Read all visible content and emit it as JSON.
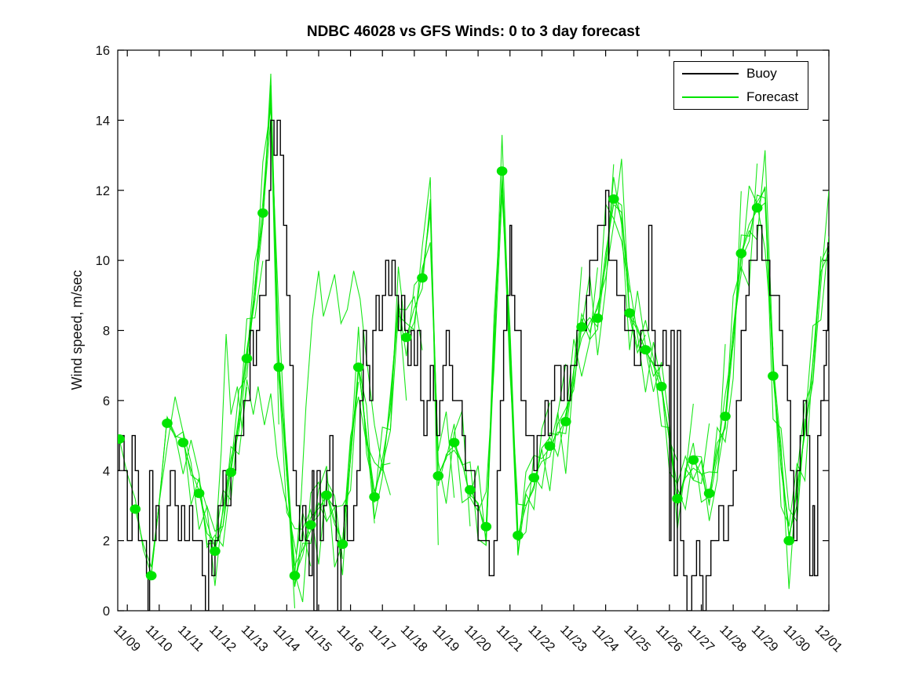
{
  "title": "NDBC 46028 vs GFS Winds: 0 to 3 day forecast",
  "y_axis": {
    "label": "Wind speed, m/sec",
    "ticks": [
      0,
      2,
      4,
      6,
      8,
      10,
      12,
      14,
      16
    ],
    "range": [
      0,
      16
    ]
  },
  "x_axis": {
    "tick_labels": [
      "11/09",
      "11/10",
      "11/11",
      "11/12",
      "11/13",
      "11/14",
      "11/15",
      "11/16",
      "11/17",
      "11/18",
      "11/19",
      "11/20",
      "11/21",
      "11/22",
      "11/23",
      "11/24",
      "11/25",
      "11/26",
      "11/27",
      "11/28",
      "11/29",
      "11/30",
      "12/01"
    ],
    "range_days": [
      -0.3,
      22.05
    ]
  },
  "legend": {
    "items": [
      {
        "label": "Buoy",
        "color": "#000000"
      },
      {
        "label": "Forecast",
        "color": "#00e400"
      }
    ]
  },
  "colors": {
    "background": "#ffffff",
    "axis": "#000000",
    "buoy": "#000000",
    "forecast": "#00e400"
  },
  "chart_data": {
    "type": "line",
    "title": "NDBC 46028 vs GFS Winds: 0 to 3 day forecast",
    "ylabel": "Wind speed, m/sec",
    "ylim": [
      0,
      16
    ],
    "x_unit": "days after 11/09 tick",
    "grid": false,
    "legend_position": "upper right",
    "forecast_run_length_days": 3,
    "forecast_spread": 1.3,
    "buoy_steps": [
      [
        -0.3,
        4
      ],
      [
        -0.25,
        5
      ],
      [
        -0.1,
        4
      ],
      [
        0.0,
        2
      ],
      [
        0.1,
        2
      ],
      [
        0.15,
        5
      ],
      [
        0.25,
        4
      ],
      [
        0.35,
        2
      ],
      [
        0.5,
        2
      ],
      [
        0.6,
        1
      ],
      [
        0.65,
        0
      ],
      [
        0.7,
        4
      ],
      [
        0.8,
        2
      ],
      [
        0.9,
        3
      ],
      [
        1.0,
        2
      ],
      [
        1.15,
        2
      ],
      [
        1.25,
        3
      ],
      [
        1.35,
        4
      ],
      [
        1.5,
        3
      ],
      [
        1.6,
        2
      ],
      [
        1.7,
        3
      ],
      [
        1.8,
        2
      ],
      [
        1.95,
        3
      ],
      [
        2.05,
        2
      ],
      [
        2.2,
        2
      ],
      [
        2.35,
        1
      ],
      [
        2.45,
        0
      ],
      [
        2.55,
        2
      ],
      [
        2.65,
        1
      ],
      [
        2.75,
        2
      ],
      [
        2.85,
        3
      ],
      [
        3.0,
        4
      ],
      [
        3.1,
        3
      ],
      [
        3.25,
        4
      ],
      [
        3.4,
        5
      ],
      [
        3.55,
        5
      ],
      [
        3.65,
        6
      ],
      [
        3.75,
        6
      ],
      [
        3.85,
        8
      ],
      [
        3.95,
        7
      ],
      [
        4.05,
        8
      ],
      [
        4.15,
        9
      ],
      [
        4.25,
        9
      ],
      [
        4.35,
        10
      ],
      [
        4.45,
        12
      ],
      [
        4.5,
        14
      ],
      [
        4.6,
        13
      ],
      [
        4.7,
        14
      ],
      [
        4.8,
        13
      ],
      [
        4.9,
        11
      ],
      [
        5.0,
        9
      ],
      [
        5.1,
        7
      ],
      [
        5.2,
        4
      ],
      [
        5.3,
        3
      ],
      [
        5.4,
        2
      ],
      [
        5.5,
        3
      ],
      [
        5.6,
        2
      ],
      [
        5.7,
        1
      ],
      [
        5.8,
        4
      ],
      [
        5.85,
        0
      ],
      [
        5.95,
        4
      ],
      [
        6.05,
        2
      ],
      [
        6.15,
        3
      ],
      [
        6.25,
        4
      ],
      [
        6.35,
        5
      ],
      [
        6.45,
        3
      ],
      [
        6.55,
        2
      ],
      [
        6.6,
        0
      ],
      [
        6.7,
        2
      ],
      [
        6.8,
        3
      ],
      [
        6.9,
        2
      ],
      [
        7.0,
        2
      ],
      [
        7.1,
        3
      ],
      [
        7.2,
        4
      ],
      [
        7.3,
        6
      ],
      [
        7.4,
        8
      ],
      [
        7.5,
        7
      ],
      [
        7.6,
        6
      ],
      [
        7.7,
        8
      ],
      [
        7.8,
        9
      ],
      [
        7.9,
        8
      ],
      [
        8.0,
        9
      ],
      [
        8.1,
        10
      ],
      [
        8.2,
        9
      ],
      [
        8.3,
        10
      ],
      [
        8.4,
        9
      ],
      [
        8.5,
        8
      ],
      [
        8.6,
        9
      ],
      [
        8.7,
        8
      ],
      [
        8.8,
        7
      ],
      [
        8.9,
        8
      ],
      [
        9.0,
        7
      ],
      [
        9.1,
        8
      ],
      [
        9.2,
        6
      ],
      [
        9.3,
        5
      ],
      [
        9.4,
        6
      ],
      [
        9.5,
        7
      ],
      [
        9.6,
        6
      ],
      [
        9.7,
        5
      ],
      [
        9.8,
        6
      ],
      [
        9.9,
        7
      ],
      [
        10.0,
        8
      ],
      [
        10.1,
        7
      ],
      [
        10.2,
        6
      ],
      [
        10.35,
        6
      ],
      [
        10.5,
        5
      ],
      [
        10.6,
        4
      ],
      [
        10.75,
        4
      ],
      [
        10.9,
        3
      ],
      [
        11.0,
        2
      ],
      [
        11.2,
        2
      ],
      [
        11.35,
        1
      ],
      [
        11.5,
        2
      ],
      [
        11.6,
        4
      ],
      [
        11.7,
        6
      ],
      [
        11.8,
        8
      ],
      [
        11.9,
        9
      ],
      [
        12.0,
        11
      ],
      [
        12.05,
        9
      ],
      [
        12.15,
        8
      ],
      [
        12.25,
        8
      ],
      [
        12.35,
        6
      ],
      [
        12.5,
        5
      ],
      [
        12.65,
        5
      ],
      [
        12.75,
        4
      ],
      [
        12.85,
        5
      ],
      [
        13.0,
        5
      ],
      [
        13.1,
        6
      ],
      [
        13.2,
        5
      ],
      [
        13.3,
        6
      ],
      [
        13.4,
        7
      ],
      [
        13.5,
        7
      ],
      [
        13.6,
        6
      ],
      [
        13.7,
        7
      ],
      [
        13.8,
        6
      ],
      [
        13.9,
        7
      ],
      [
        14.0,
        7
      ],
      [
        14.1,
        8
      ],
      [
        14.25,
        8
      ],
      [
        14.4,
        9
      ],
      [
        14.5,
        10
      ],
      [
        14.65,
        10
      ],
      [
        14.75,
        11
      ],
      [
        14.9,
        11
      ],
      [
        15.0,
        12
      ],
      [
        15.1,
        10
      ],
      [
        15.2,
        10
      ],
      [
        15.35,
        9
      ],
      [
        15.5,
        9
      ],
      [
        15.6,
        8
      ],
      [
        15.75,
        8
      ],
      [
        15.9,
        7
      ],
      [
        16.0,
        7
      ],
      [
        16.1,
        8
      ],
      [
        16.25,
        8
      ],
      [
        16.35,
        11
      ],
      [
        16.45,
        8
      ],
      [
        16.55,
        7
      ],
      [
        16.65,
        7
      ],
      [
        16.8,
        8
      ],
      [
        16.9,
        7
      ],
      [
        17.0,
        2
      ],
      [
        17.05,
        8
      ],
      [
        17.15,
        1
      ],
      [
        17.25,
        8
      ],
      [
        17.35,
        2
      ],
      [
        17.45,
        1
      ],
      [
        17.55,
        0
      ],
      [
        17.7,
        1
      ],
      [
        17.85,
        2
      ],
      [
        17.95,
        1
      ],
      [
        18.05,
        0
      ],
      [
        18.15,
        1
      ],
      [
        18.3,
        2
      ],
      [
        18.45,
        2
      ],
      [
        18.55,
        3
      ],
      [
        18.7,
        2
      ],
      [
        18.85,
        3
      ],
      [
        19.0,
        4
      ],
      [
        19.1,
        6
      ],
      [
        19.25,
        8
      ],
      [
        19.4,
        9
      ],
      [
        19.5,
        10
      ],
      [
        19.65,
        10
      ],
      [
        19.75,
        11
      ],
      [
        19.9,
        10
      ],
      [
        20.05,
        10
      ],
      [
        20.15,
        9
      ],
      [
        20.3,
        9
      ],
      [
        20.45,
        8
      ],
      [
        20.55,
        7
      ],
      [
        20.7,
        6
      ],
      [
        20.8,
        4
      ],
      [
        20.9,
        2
      ],
      [
        21.0,
        4
      ],
      [
        21.1,
        5
      ],
      [
        21.2,
        6
      ],
      [
        21.3,
        5
      ],
      [
        21.4,
        1
      ],
      [
        21.5,
        3
      ],
      [
        21.55,
        1
      ],
      [
        21.65,
        5
      ],
      [
        21.75,
        6
      ],
      [
        21.85,
        7
      ],
      [
        21.92,
        8
      ],
      [
        21.97,
        10.5
      ],
      [
        22.0,
        10.5
      ]
    ],
    "forecast_markers": [
      [
        -0.25,
        4.9
      ],
      [
        0.25,
        2.9
      ],
      [
        0.75,
        1.0
      ],
      [
        1.25,
        5.35
      ],
      [
        1.75,
        4.8
      ],
      [
        2.25,
        3.35
      ],
      [
        2.75,
        1.7
      ],
      [
        3.25,
        3.95
      ],
      [
        3.75,
        7.2
      ],
      [
        4.25,
        11.35
      ],
      [
        4.75,
        6.95
      ],
      [
        5.25,
        1.0
      ],
      [
        5.75,
        2.45
      ],
      [
        6.25,
        3.3
      ],
      [
        6.75,
        1.9
      ],
      [
        7.25,
        6.95
      ],
      [
        7.75,
        3.25
      ],
      [
        8.75,
        7.8
      ],
      [
        9.25,
        9.5
      ],
      [
        9.75,
        3.85
      ],
      [
        10.25,
        4.8
      ],
      [
        10.75,
        3.45
      ],
      [
        11.25,
        2.4
      ],
      [
        11.75,
        12.55
      ],
      [
        12.25,
        2.15
      ],
      [
        12.75,
        3.8
      ],
      [
        13.25,
        4.7
      ],
      [
        13.75,
        5.4
      ],
      [
        14.25,
        8.1
      ],
      [
        14.75,
        8.35
      ],
      [
        15.25,
        11.75
      ],
      [
        15.75,
        8.5
      ],
      [
        16.25,
        7.45
      ],
      [
        16.75,
        6.4
      ],
      [
        17.25,
        3.2
      ],
      [
        17.75,
        4.3
      ],
      [
        18.25,
        3.35
      ],
      [
        18.75,
        5.55
      ],
      [
        19.25,
        10.2
      ],
      [
        19.75,
        11.5
      ],
      [
        20.25,
        6.7
      ],
      [
        20.75,
        2.0
      ]
    ],
    "forecast_consensus_path": [
      [
        -0.3,
        4.2
      ],
      [
        -0.25,
        4.9
      ],
      [
        0.25,
        2.9
      ],
      [
        0.75,
        1.0
      ],
      [
        1.25,
        5.35
      ],
      [
        1.75,
        4.8
      ],
      [
        2.25,
        3.35
      ],
      [
        2.75,
        1.7
      ],
      [
        3.25,
        3.95
      ],
      [
        3.75,
        7.2
      ],
      [
        4.25,
        11.35
      ],
      [
        4.5,
        14.8
      ],
      [
        4.75,
        6.95
      ],
      [
        5.25,
        1.0
      ],
      [
        5.75,
        2.45
      ],
      [
        6.25,
        3.3
      ],
      [
        6.75,
        1.9
      ],
      [
        7.25,
        6.95
      ],
      [
        7.75,
        3.25
      ],
      [
        8.25,
        5.5
      ],
      [
        8.5,
        9.0
      ],
      [
        8.75,
        7.8
      ],
      [
        9.25,
        9.5
      ],
      [
        9.5,
        11.5
      ],
      [
        9.75,
        3.85
      ],
      [
        10.25,
        4.8
      ],
      [
        10.75,
        3.45
      ],
      [
        11.25,
        2.4
      ],
      [
        11.75,
        12.55
      ],
      [
        12.25,
        2.15
      ],
      [
        12.75,
        3.8
      ],
      [
        13.25,
        4.7
      ],
      [
        13.75,
        5.4
      ],
      [
        14.25,
        8.1
      ],
      [
        14.75,
        8.35
      ],
      [
        15.25,
        11.75
      ],
      [
        15.4,
        12.6
      ],
      [
        15.75,
        8.5
      ],
      [
        16.25,
        7.45
      ],
      [
        16.75,
        6.4
      ],
      [
        17.25,
        3.2
      ],
      [
        17.75,
        4.3
      ],
      [
        18.25,
        3.35
      ],
      [
        18.75,
        5.55
      ],
      [
        19.25,
        10.2
      ],
      [
        19.75,
        11.5
      ],
      [
        19.95,
        13.0
      ],
      [
        20.25,
        6.7
      ],
      [
        20.75,
        2.0
      ],
      [
        21.25,
        5.0
      ],
      [
        21.75,
        9.3
      ],
      [
        22.05,
        11.2
      ]
    ],
    "forecast_outlier_runs": [
      [
        [
          5.25,
          1.0
        ],
        [
          5.45,
          3.2
        ],
        [
          5.6,
          5.8
        ],
        [
          5.8,
          8.3
        ],
        [
          6.0,
          9.7
        ],
        [
          6.15,
          8.4
        ],
        [
          6.3,
          8.9
        ],
        [
          6.5,
          9.6
        ],
        [
          6.7,
          8.2
        ],
        [
          6.9,
          8.6
        ],
        [
          7.1,
          9.7
        ],
        [
          7.3,
          8.9
        ],
        [
          7.5,
          7.2
        ],
        [
          7.75,
          5.3
        ],
        [
          8.0,
          4.1
        ],
        [
          8.25,
          3.3
        ]
      ],
      [
        [
          2.75,
          1.7
        ],
        [
          2.95,
          4.6
        ],
        [
          3.1,
          7.9
        ],
        [
          3.25,
          5.6
        ],
        [
          3.45,
          6.4
        ],
        [
          3.6,
          5.2
        ],
        [
          3.75,
          6.6
        ],
        [
          3.95,
          5.6
        ],
        [
          4.1,
          6.4
        ],
        [
          4.3,
          5.3
        ],
        [
          4.5,
          6.2
        ],
        [
          4.7,
          4.4
        ],
        [
          4.9,
          3.4
        ],
        [
          5.1,
          2.6
        ],
        [
          5.3,
          1.6
        ],
        [
          5.5,
          2.8
        ],
        [
          5.7,
          2.2
        ]
      ]
    ]
  }
}
